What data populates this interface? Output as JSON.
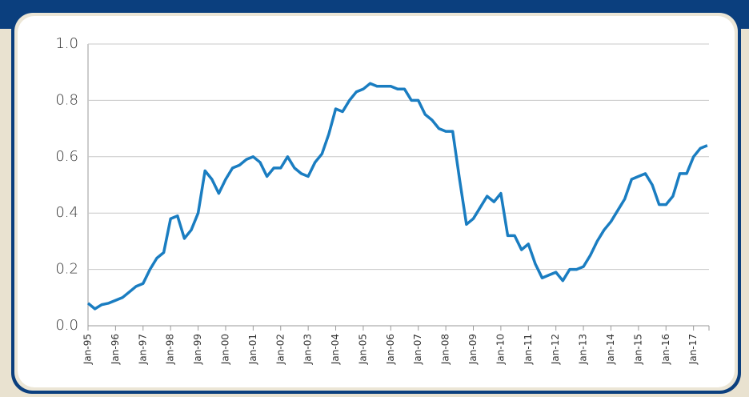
{
  "chart_data": {
    "type": "line",
    "categories": [
      "Jan-95",
      null,
      null,
      null,
      "Jan-96",
      null,
      null,
      null,
      "Jan-97",
      null,
      null,
      null,
      "Jan-98",
      null,
      null,
      null,
      "Jan-99",
      null,
      null,
      null,
      "Jan-00",
      null,
      null,
      null,
      "Jan-01",
      null,
      null,
      null,
      "Jan-02",
      null,
      null,
      null,
      "Jan-03",
      null,
      null,
      null,
      "Jan-04",
      null,
      null,
      null,
      "Jan-05",
      null,
      null,
      null,
      "Jan-06",
      null,
      null,
      null,
      "Jan-07",
      null,
      null,
      null,
      "Jan-08",
      null,
      null,
      null,
      "Jan-09",
      null,
      null,
      null,
      "Jan-10",
      null,
      null,
      null,
      "Jan-11",
      null,
      null,
      null,
      "Jan-12",
      null,
      null,
      null,
      "Jan-13",
      null,
      null,
      null,
      "Jan-14",
      null,
      null,
      null,
      "Jan-15",
      null,
      null,
      null,
      "Jan-16",
      null,
      null,
      null,
      "Jan-17",
      null,
      null
    ],
    "series": [
      {
        "color": "#1a7dc1",
        "values": [
          0.08,
          0.06,
          0.075,
          0.08,
          0.09,
          0.1,
          0.12,
          0.14,
          0.15,
          0.2,
          0.24,
          0.26,
          0.38,
          0.39,
          0.31,
          0.34,
          0.4,
          0.55,
          0.52,
          0.47,
          0.52,
          0.56,
          0.57,
          0.59,
          0.6,
          0.58,
          0.53,
          0.56,
          0.56,
          0.6,
          0.56,
          0.54,
          0.53,
          0.58,
          0.61,
          0.68,
          0.77,
          0.76,
          0.8,
          0.83,
          0.84,
          0.86,
          0.85,
          0.85,
          0.85,
          0.84,
          0.84,
          0.8,
          0.8,
          0.75,
          0.73,
          0.7,
          0.69,
          0.69,
          0.52,
          0.36,
          0.38,
          0.42,
          0.46,
          0.44,
          0.47,
          0.32,
          0.32,
          0.27,
          0.29,
          0.22,
          0.17,
          0.18,
          0.19,
          0.16,
          0.2,
          0.2,
          0.21,
          0.25,
          0.3,
          0.34,
          0.37,
          0.41,
          0.45,
          0.52,
          0.53,
          0.54,
          0.5,
          0.43,
          0.43,
          0.46,
          0.54,
          0.54,
          0.6,
          0.63,
          0.64
        ]
      }
    ],
    "ylim": [
      0,
      1
    ],
    "yticks": [
      {
        "value": 0,
        "label": "0.0"
      },
      0.2,
      0.4,
      0.6,
      0.8,
      {
        "value": 1,
        "label": "1.0"
      }
    ],
    "grid": true
  }
}
